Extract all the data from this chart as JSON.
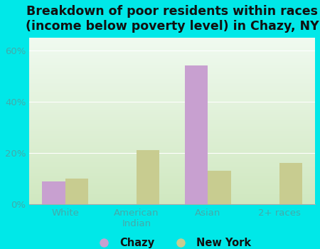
{
  "title": "Breakdown of poor residents within races\n(income below poverty level) in Chazy, NY",
  "categories": [
    "White",
    "American\nIndian",
    "Asian",
    "2+ races"
  ],
  "chazy_values": [
    9.0,
    0.0,
    54.0,
    0.0
  ],
  "ny_values": [
    10.0,
    21.0,
    13.0,
    16.0
  ],
  "chazy_color": "#c8a0d0",
  "ny_color": "#c8cc90",
  "background_outer": "#00e8e8",
  "background_plot_top": "#f0faf0",
  "background_plot_bottom": "#d0e8c0",
  "ylim": [
    0,
    65
  ],
  "yticks": [
    0,
    20,
    40,
    60
  ],
  "ytick_labels": [
    "0%",
    "20%",
    "40%",
    "60%"
  ],
  "title_fontsize": 12.5,
  "bar_width": 0.32,
  "legend_labels": [
    "Chazy",
    "New York"
  ],
  "tick_color": "#44aaaa",
  "title_color": "#111111"
}
